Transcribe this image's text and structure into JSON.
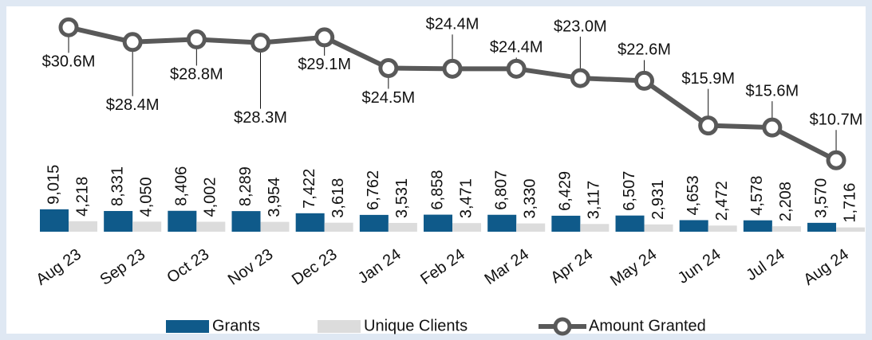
{
  "chart_data": {
    "type": "bar-line",
    "categories": [
      "Aug 23",
      "Sep 23",
      "Oct 23",
      "Nov 23",
      "Dec 23",
      "Jan 24",
      "Feb 24",
      "Mar 24",
      "Apr 24",
      "May 24",
      "Jun 24",
      "Jul 24",
      "Aug 24"
    ],
    "series": [
      {
        "name": "Grants",
        "type": "bar",
        "color": "#0f5a8a",
        "values": [
          9015,
          8331,
          8406,
          8289,
          7422,
          6762,
          6858,
          6807,
          6429,
          6507,
          4653,
          4578,
          3570
        ],
        "value_labels": [
          "9,015",
          "8,331",
          "8,406",
          "8,289",
          "7,422",
          "6,762",
          "6,858",
          "6,807",
          "6,429",
          "6,507",
          "4,653",
          "4,578",
          "3,570"
        ]
      },
      {
        "name": "Unique Clients",
        "type": "bar",
        "color": "#dcdcdc",
        "values": [
          4218,
          4050,
          4002,
          3954,
          3618,
          3531,
          3471,
          3330,
          3117,
          2931,
          2472,
          2208,
          1716
        ],
        "value_labels": [
          "4,218",
          "4,050",
          "4,002",
          "3,954",
          "3,618",
          "3,531",
          "3,471",
          "3,330",
          "3,117",
          "2,931",
          "2,472",
          "2,208",
          "1,716"
        ]
      },
      {
        "name": "Amount Granted",
        "type": "line",
        "axis": "y2",
        "color": "#595959",
        "values": [
          30.6,
          28.4,
          28.8,
          28.3,
          29.1,
          24.5,
          24.4,
          24.4,
          23.0,
          22.6,
          15.9,
          15.6,
          10.7
        ],
        "value_labels": [
          "$30.6M",
          "$28.4M",
          "$28.8M",
          "$28.3M",
          "$29.1M",
          "$24.5M",
          "$24.4M",
          "$24.4M",
          "$23.0M",
          "$22.6M",
          "$15.9M",
          "$15.6M",
          "$10.7M"
        ]
      }
    ],
    "ylim": [
      0,
      90000
    ],
    "y2lim": [
      0,
      33.5
    ],
    "legend": "bottom"
  }
}
